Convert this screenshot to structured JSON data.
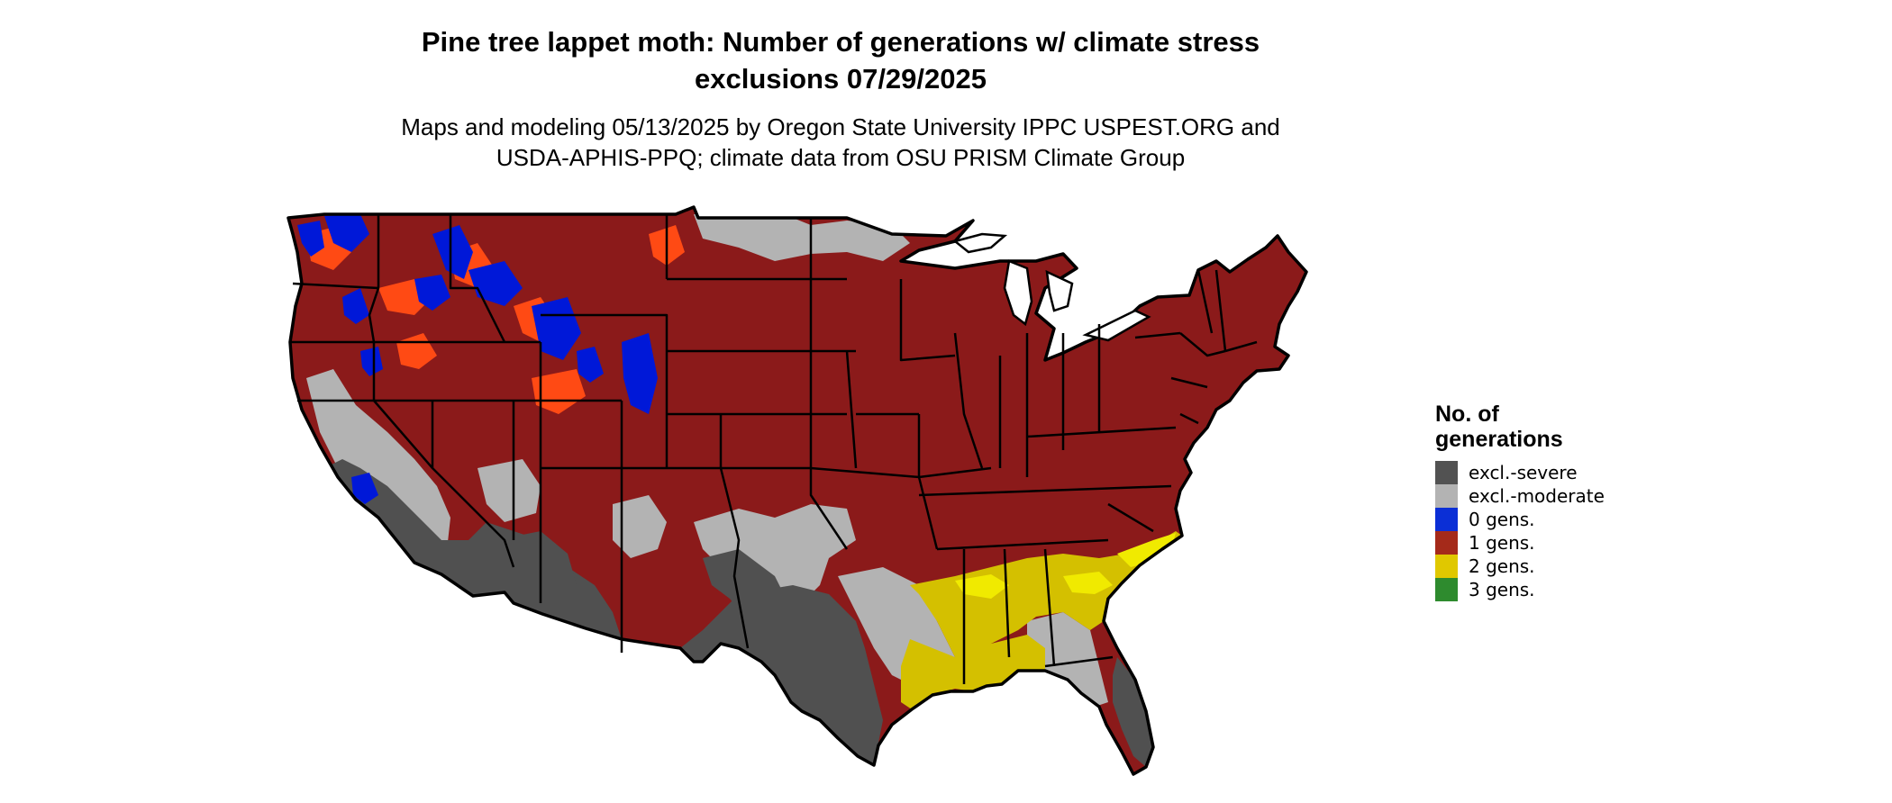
{
  "title": {
    "line1": "Pine tree lappet moth: Number of generations w/ climate stress",
    "line2": "exclusions 07/29/2025"
  },
  "subtitle": {
    "line1": "Maps and modeling 05/13/2025 by Oregon State University IPPC USPEST.ORG and",
    "line2": "USDA-APHIS-PPQ; climate data from OSU PRISM Climate Group"
  },
  "legend": {
    "title_line1": "No. of",
    "title_line2": "generations",
    "items": [
      {
        "label": "excl.-severe",
        "color": "#525252"
      },
      {
        "label": "excl.-moderate",
        "color": "#b3b3b3"
      },
      {
        "label": "0 gens.",
        "color": "#0b2fd6"
      },
      {
        "label": "1 gens.",
        "color": "#a52a1a"
      },
      {
        "label": "2 gens.",
        "color": "#e0c800"
      },
      {
        "label": "3 gens.",
        "color": "#2e8b2e"
      }
    ]
  },
  "map_colors": {
    "one_gen": "#8b1a1a",
    "one_gen_bright": "#ff4a14",
    "zero_gen": "#0018d8",
    "two_gen": "#d4c000",
    "two_gen_bright": "#f0ea00",
    "excl_moderate": "#b3b3b3",
    "excl_severe": "#505050"
  }
}
